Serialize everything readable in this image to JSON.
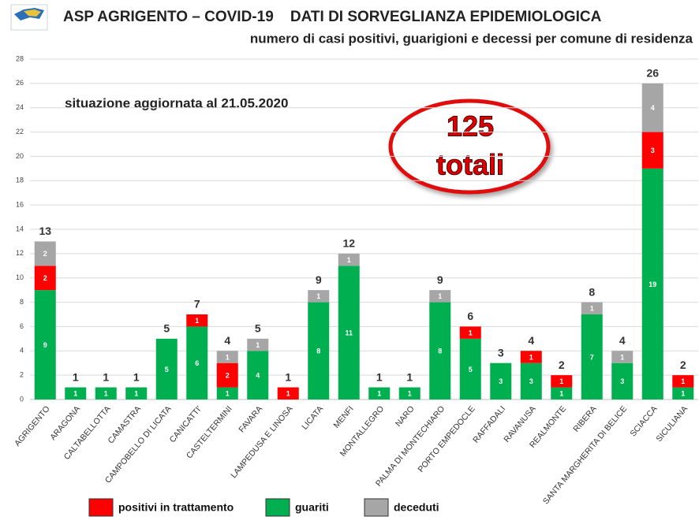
{
  "chart_data": {
    "type": "stacked_bar",
    "title": "ASP AGRIGENTO – COVID-19    DATI DI SORVEGLIANZA EPIDEMIOLOGICA",
    "subtitle": "numero di casi positivi, guarigioni e decessi per comune di residenza",
    "annotations": [
      "situazione aggiornata al 21.05.2020",
      "125",
      "totali"
    ],
    "categories": [
      "AGRIGENTO",
      "ARAGONA",
      "CALTABELLOTTA",
      "CAMASTRA",
      "CAMPOBELLO DI LICATA",
      "CANICATTI'",
      "CASTELTERMINI",
      "FAVARA",
      "LAMPEDUSA E LINOSA",
      "LICATA",
      "MENFI",
      "MONTALLEGRO",
      "NARO",
      "PALMA DI MONTECHIARO",
      "PORTO EMPEDOCLE",
      "RAFFADALI",
      "RAVANUSA",
      "REALMONTE",
      "RIBERA",
      "SANTA MARGHERITA DI BELICE",
      "SCIACCA",
      "SICULIANA"
    ],
    "series": [
      {
        "name": "positivi in trattamento",
        "color": "#ff0000",
        "values": [
          2,
          null,
          null,
          null,
          null,
          1,
          2,
          null,
          1,
          null,
          null,
          null,
          null,
          null,
          1,
          null,
          1,
          1,
          null,
          null,
          3,
          1
        ]
      },
      {
        "name": "guariti",
        "color": "#00b050",
        "values": [
          9,
          1,
          1,
          1,
          5,
          6,
          1,
          4,
          null,
          8,
          11,
          1,
          1,
          8,
          5,
          3,
          3,
          1,
          7,
          3,
          19,
          1
        ]
      },
      {
        "name": "deceduti",
        "color": "#a6a6a6",
        "values": [
          2,
          null,
          null,
          null,
          null,
          null,
          1,
          1,
          null,
          1,
          1,
          null,
          null,
          1,
          null,
          null,
          null,
          null,
          1,
          1,
          4,
          null
        ]
      }
    ],
    "totals": [
      13,
      1,
      1,
      1,
      5,
      7,
      4,
      5,
      1,
      9,
      12,
      1,
      1,
      9,
      6,
      3,
      4,
      2,
      8,
      4,
      26,
      2
    ],
    "ylim": [
      0,
      28
    ],
    "yticks": [
      0,
      2,
      4,
      6,
      8,
      10,
      12,
      14,
      16,
      18,
      20,
      22,
      24,
      26,
      28
    ],
    "grid": true
  }
}
